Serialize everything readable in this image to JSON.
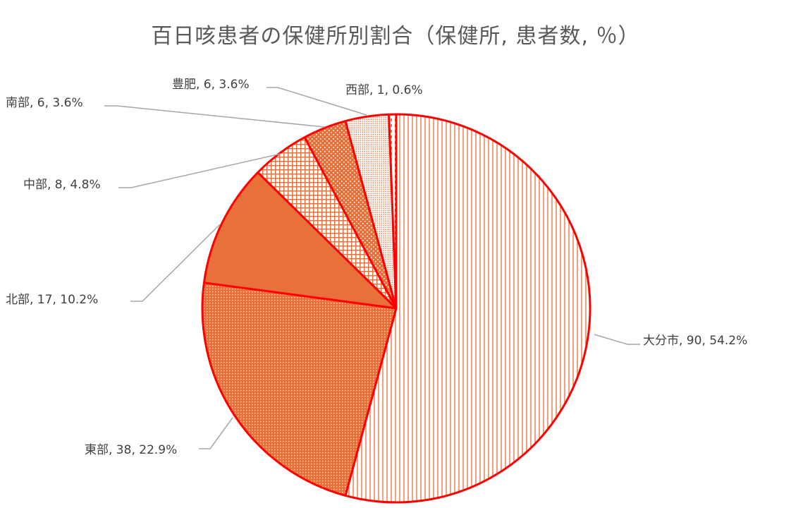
{
  "chart_data": {
    "type": "pie",
    "title": "百日咳患者の保健所別割合（保健所, 患者数, ％）",
    "categories": [
      "大分市",
      "東部",
      "北部",
      "中部",
      "南部",
      "豊肥",
      "西部"
    ],
    "values": [
      90,
      38,
      17,
      8,
      6,
      6,
      1
    ],
    "percent_labels": [
      "54.2%",
      "22.9%",
      "10.2%",
      "4.8%",
      "3.6%",
      "3.6%",
      "0.6%"
    ],
    "data_labels": [
      "大分市, 90, 54.2%",
      "東部, 38, 22.9%",
      "北部, 17, 10.2%",
      "中部, 8, 4.8%",
      "南部, 6, 3.6%",
      "豊肥, 6, 3.6%",
      "西部, 1, 0.6%"
    ],
    "legend": "none",
    "colors": {
      "border": "#ff0000",
      "fill": "#e8703a",
      "pattern": "#e8703a",
      "leader": "#a6a6a6",
      "label": "#404040",
      "title": "#595959"
    },
    "patterns": [
      "vertical-lines",
      "dense-dots",
      "solid",
      "grid",
      "sparse-dots",
      "fine-dots",
      "wide-dash"
    ]
  }
}
